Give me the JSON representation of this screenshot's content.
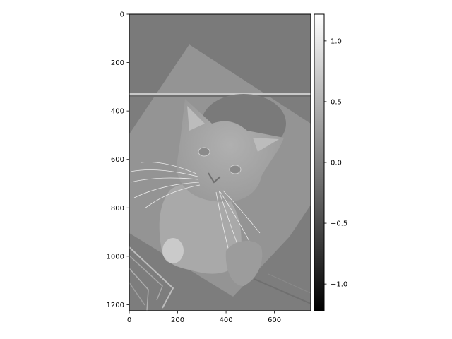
{
  "chart_data": {
    "type": "heatmap",
    "colormap": "gray",
    "image_extent": {
      "x": [
        0,
        750
      ],
      "y": [
        1225,
        0
      ]
    },
    "x_axis": {
      "ticks": [
        0,
        200,
        400,
        600
      ],
      "labels": [
        "0",
        "200",
        "400",
        "600"
      ]
    },
    "y_axis": {
      "ticks": [
        0,
        200,
        400,
        600,
        800,
        1000,
        1200
      ],
      "labels": [
        "0",
        "200",
        "400",
        "600",
        "800",
        "1000",
        "1200"
      ],
      "inverted": true
    },
    "colorbar": {
      "range": [
        -1.22,
        1.22
      ],
      "ticks": [
        1.0,
        0.5,
        0.0,
        -0.5,
        -1.0
      ],
      "labels": [
        "1.0",
        "0.5",
        "0.0",
        "−0.5",
        "−1.0"
      ]
    },
    "colors": {
      "low": "#000000",
      "high": "#ffffff",
      "background": "#7f7f7f"
    }
  }
}
